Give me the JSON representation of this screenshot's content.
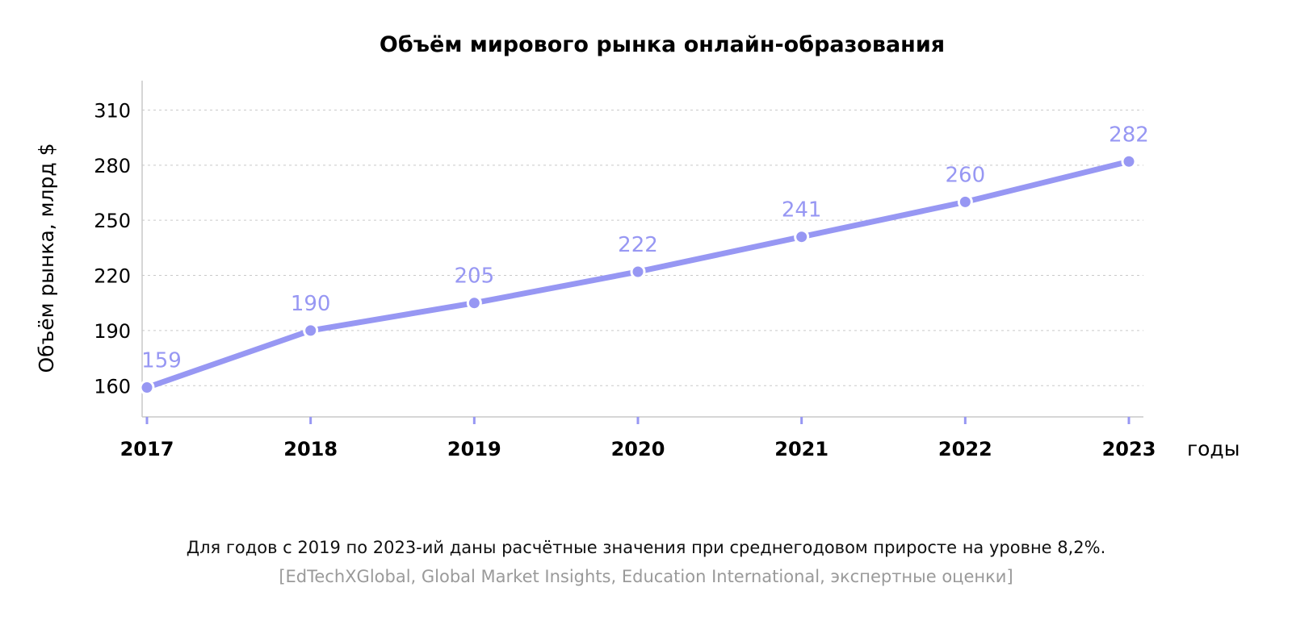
{
  "chart_data": {
    "type": "line",
    "title": "Объём мирового рынка онлайн-образования",
    "ylabel": "Объём рынка, млрд $",
    "xlabel": "годы",
    "categories": [
      "2017",
      "2018",
      "2019",
      "2020",
      "2021",
      "2022",
      "2023"
    ],
    "series": [
      {
        "values": [
          159,
          190,
          205,
          222,
          241,
          260,
          282
        ]
      }
    ],
    "ylim": [
      143,
      326
    ],
    "yticks": [
      160,
      190,
      220,
      250,
      280,
      310
    ],
    "grid": true,
    "line_color": "#9797f3",
    "point_color": "#9797f3",
    "label_color": "#9797f3"
  },
  "footnote": {
    "note": "Для годов с 2019 по 2023-ий даны расчётные значения при среднегодовом приросте на уровне 8,2%.",
    "source": "[EdTechXGlobal, Global Market Insights, Education International, экспертные оценки]"
  }
}
